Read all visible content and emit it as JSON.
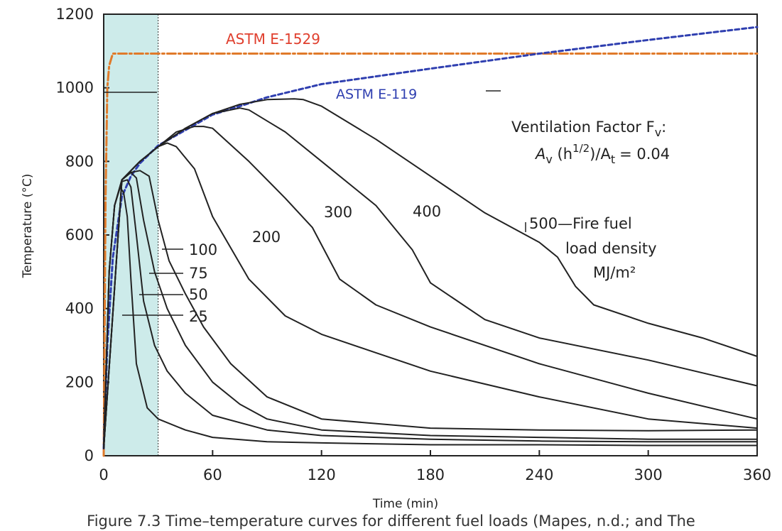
{
  "caption": "Figure 7.3 Time–temperature curves for different fuel loads (Mapes, n.d.; and The",
  "chart_data": {
    "type": "line",
    "xlabel": "Time (min)",
    "ylabel": "Temperature (°C)",
    "xlim": [
      0,
      360
    ],
    "ylim": [
      0,
      1200
    ],
    "xticks": [
      "0",
      "60",
      "120",
      "180",
      "240",
      "300",
      "360"
    ],
    "yticks": [
      "0",
      "200",
      "400",
      "600",
      "800",
      "1000",
      "1200"
    ],
    "grid": false,
    "shaded_region": {
      "x": [
        0,
        30
      ],
      "color": "#cdebea"
    },
    "ventilation_text": {
      "line1": "Ventilation Factor F",
      "line1_sub": "v",
      "line1_end": ":",
      "line2_a": "A",
      "line2_a_sub": "v",
      "line2_b": " (h",
      "line2_b_sup": "1/2",
      "line2_c": ")/A",
      "line2_c_sub": "t",
      "line2_d": "= 0.04"
    },
    "annotations": {
      "fuel_100": "100",
      "fuel_75": "75",
      "fuel_50": "50",
      "fuel_25": "25",
      "fuel_200": "200",
      "fuel_300": "300",
      "fuel_400": "400",
      "fuel_500": "500—Fire fuel",
      "fuel_500_line2": "load density",
      "fuel_500_line3": "MJ/m²"
    },
    "series": [
      {
        "name": "ASTM E-1529",
        "color": "#e07a2a",
        "dash": "12,4,3,4",
        "x": [
          0,
          1,
          2,
          3,
          5,
          360
        ],
        "y": [
          0,
          700,
          1000,
          1060,
          1093,
          1093
        ]
      },
      {
        "name": "ASTM E-119",
        "color": "#2f3fb0",
        "dash": "6,4",
        "x": [
          0,
          2,
          5,
          10,
          15,
          20,
          30,
          45,
          60,
          75,
          90,
          120,
          180,
          240,
          300,
          360
        ],
        "y": [
          20,
          300,
          538,
          704,
          760,
          795,
          843,
          885,
          927,
          950,
          974,
          1010,
          1052,
          1093,
          1130,
          1165
        ]
      },
      {
        "x": [
          0,
          3,
          6,
          9,
          11,
          13,
          15,
          18,
          24,
          30,
          45,
          60,
          90,
          120,
          180,
          240,
          300,
          360
        ],
        "y": [
          20,
          500,
          680,
          730,
          715,
          650,
          480,
          250,
          130,
          100,
          70,
          50,
          38,
          35,
          30,
          30,
          28,
          28
        ]
      },
      {
        "x": [
          0,
          3,
          6,
          10,
          13,
          15,
          18,
          22,
          28,
          35,
          45,
          60,
          90,
          120,
          180,
          240,
          300,
          360
        ],
        "y": [
          20,
          500,
          680,
          745,
          750,
          730,
          600,
          420,
          300,
          230,
          170,
          110,
          70,
          55,
          45,
          40,
          38,
          38
        ]
      },
      {
        "x": [
          0,
          3,
          6,
          10,
          15,
          18,
          22,
          28,
          35,
          45,
          60,
          75,
          90,
          120,
          180,
          240,
          300,
          360
        ],
        "y": [
          20,
          500,
          680,
          750,
          770,
          755,
          640,
          500,
          400,
          300,
          200,
          140,
          100,
          70,
          55,
          50,
          45,
          45
        ]
      },
      {
        "x": [
          0,
          3,
          6,
          10,
          15,
          20,
          25,
          30,
          36,
          45,
          55,
          70,
          90,
          120,
          180,
          240,
          300,
          360
        ],
        "y": [
          20,
          500,
          680,
          750,
          770,
          775,
          760,
          640,
          530,
          440,
          350,
          250,
          160,
          100,
          75,
          70,
          68,
          70
        ]
      },
      {
        "x": [
          0,
          10,
          20,
          30,
          35,
          40,
          50,
          60,
          80,
          100,
          120,
          150,
          180,
          240,
          300,
          360
        ],
        "y": [
          20,
          750,
          800,
          840,
          850,
          840,
          780,
          650,
          480,
          380,
          330,
          280,
          230,
          160,
          100,
          75
        ]
      },
      {
        "x": [
          0,
          10,
          20,
          30,
          40,
          50,
          55,
          60,
          80,
          100,
          115,
          130,
          150,
          180,
          240,
          300,
          360
        ],
        "y": [
          20,
          750,
          800,
          840,
          880,
          895,
          895,
          890,
          800,
          700,
          620,
          480,
          410,
          350,
          250,
          170,
          100
        ]
      },
      {
        "x": [
          0,
          10,
          20,
          30,
          45,
          60,
          70,
          75,
          80,
          100,
          120,
          150,
          170,
          180,
          210,
          240,
          300,
          360
        ],
        "y": [
          20,
          750,
          800,
          840,
          890,
          930,
          940,
          945,
          940,
          880,
          800,
          680,
          560,
          470,
          370,
          320,
          260,
          190
        ]
      },
      {
        "x": [
          0,
          10,
          20,
          30,
          45,
          60,
          75,
          90,
          105,
          110,
          120,
          150,
          180,
          210,
          240,
          250,
          260,
          270,
          300,
          330,
          360
        ],
        "y": [
          20,
          750,
          800,
          840,
          890,
          930,
          955,
          968,
          970,
          968,
          950,
          860,
          760,
          660,
          580,
          540,
          460,
          410,
          360,
          320,
          270
        ]
      }
    ]
  }
}
